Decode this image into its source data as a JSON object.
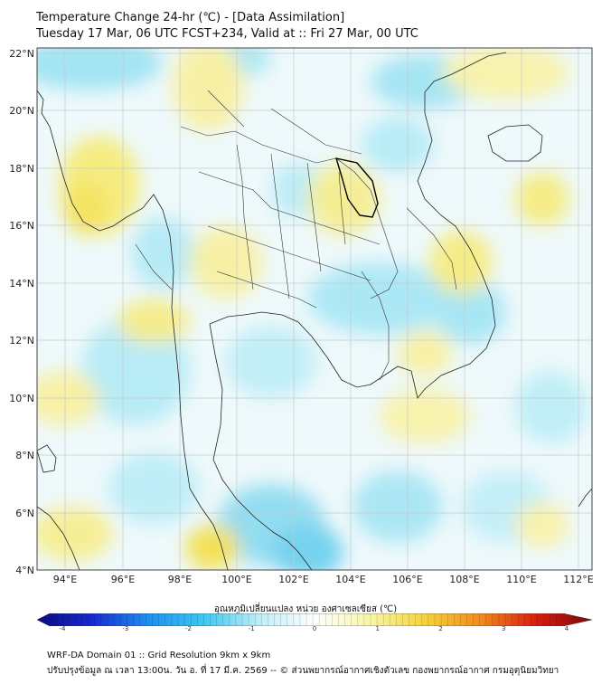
{
  "title_line1": "Temperature Change 24-hr (℃) - [Data Assimilation]",
  "title_line2": "Tuesday 17 Mar, 06 UTC FCST+234, Valid at :: Fri 27 Mar, 00 UTC",
  "lat_labels": [
    "22°N",
    "20°N",
    "18°N",
    "16°N",
    "14°N",
    "12°N",
    "10°N",
    "8°N",
    "6°N",
    "4°N"
  ],
  "lon_labels": [
    "94°E",
    "96°E",
    "98°E",
    "100°E",
    "102°E",
    "104°E",
    "106°E",
    "108°E",
    "110°E",
    "112°E"
  ],
  "colorbar": {
    "title": "อุณหภูมิเปลี่ยนแปลง หน่วย องศาเซลเซียส (℃)",
    "ticks": [
      "-4",
      "-3",
      "-2",
      "-1",
      "0",
      "1",
      "2",
      "3",
      "4"
    ],
    "colors": [
      "#0a0a80",
      "#1a2ad0",
      "#1e8ff0",
      "#3cc8f0",
      "#bfeef8",
      "#ffffff",
      "#f8f6a8",
      "#f4d33a",
      "#f08a1c",
      "#d81c10",
      "#7a0808"
    ]
  },
  "footer_line1": "WRF-DA Domain 01 :: Grid Resolution 9km x 9km",
  "footer_line2": "ปรับปรุงข้อมูล ณ เวลา 13:00น. วัน อ. ที่ 17 มี.ค. 2569 -- © ส่วนพยากรณ์อากาศเชิงตัวเลข กองพยากรณ์อากาศ กรมอุตุนิยมวิทยา"
}
